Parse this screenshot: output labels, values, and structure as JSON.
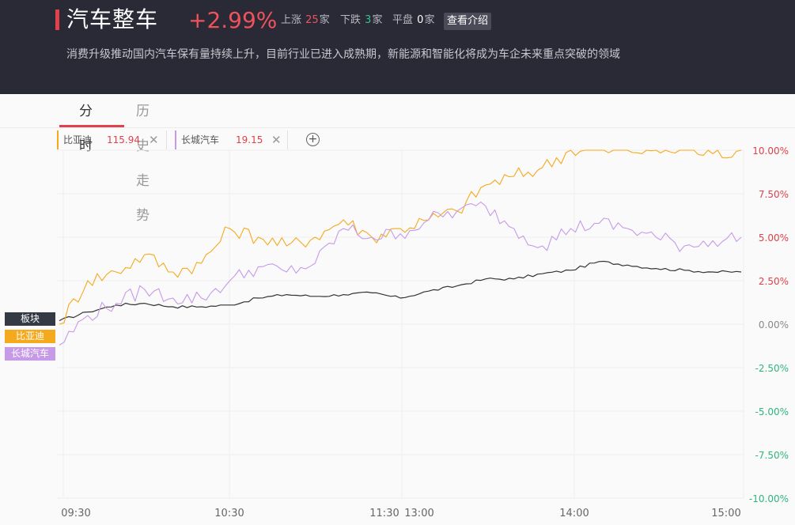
{
  "header": {
    "title": "汽车整车",
    "change": "+2.99%",
    "stats": [
      {
        "label": "上涨",
        "value": "25",
        "unit": "家"
      },
      {
        "label": "下跌",
        "value": "3",
        "unit": "家"
      },
      {
        "label": "平盘",
        "value": "0",
        "unit": "家"
      }
    ],
    "intro_button": "查看介绍",
    "description": "消费升级推动国内汽车保有量持续上升，目前行业已进入成熟期，新能源和智能化将成为车企未来重点突破的领域"
  },
  "tabs": [
    {
      "label": "分时",
      "active": true
    },
    {
      "label": "历史走势",
      "active": false
    }
  ],
  "compare_stocks": [
    {
      "name": "比亚迪",
      "price": "115.94",
      "color": "#f5a91d",
      "close_icon": "close-icon"
    },
    {
      "name": "长城汽车",
      "price": "19.15",
      "color": "#c79ae8",
      "close_icon": "close-icon"
    }
  ],
  "add_icon": "plus-circle-icon",
  "colors": {
    "header_bg": "#2a2a36",
    "up": "#e0414a",
    "down": "#2eb67d",
    "sector_line": "#333333",
    "byd_line": "#f5a91d",
    "gwm_line": "#c79ae8"
  },
  "chart_data": {
    "type": "line",
    "x": [
      "09:30",
      "09:40",
      "09:50",
      "10:00",
      "10:10",
      "10:20",
      "10:30",
      "10:40",
      "10:50",
      "11:00",
      "11:10",
      "11:20",
      "11:30/13:00",
      "13:10",
      "13:20",
      "13:30",
      "13:40",
      "13:50",
      "14:00",
      "14:10",
      "14:20",
      "14:30",
      "14:40",
      "14:50",
      "15:00"
    ],
    "xticks": [
      "09:30",
      "10:30",
      "11:30",
      "13:00",
      "14:00",
      "15:00"
    ],
    "ylim": [
      -10,
      10
    ],
    "yticks": [
      "10.00%",
      "7.50%",
      "5.00%",
      "2.50%",
      "0.00%",
      "-2.50%",
      "-5.00%",
      "-7.50%",
      "-10.00%"
    ],
    "grid": true,
    "series": [
      {
        "name": "板块",
        "color": "#333333",
        "values": [
          0.2,
          0.7,
          1.1,
          1.2,
          1.0,
          1.0,
          1.1,
          1.5,
          1.7,
          1.6,
          1.7,
          1.8,
          1.5,
          1.9,
          2.2,
          2.6,
          2.6,
          2.9,
          3.1,
          3.6,
          3.4,
          3.2,
          3.1,
          3.0,
          3.0
        ]
      },
      {
        "name": "比亚迪",
        "color": "#f5a91d",
        "values": [
          0.0,
          2.5,
          3.0,
          4.0,
          3.0,
          3.5,
          5.5,
          5.0,
          4.5,
          5.0,
          6.0,
          5.0,
          5.5,
          6.0,
          6.5,
          8.0,
          8.5,
          9.0,
          10.0,
          10.0,
          10.0,
          10.0,
          10.0,
          9.8,
          10.0
        ]
      },
      {
        "name": "长城汽车",
        "color": "#c79ae8",
        "values": [
          -1.2,
          0.5,
          1.2,
          2.0,
          1.5,
          1.5,
          2.5,
          3.3,
          3.0,
          3.5,
          5.5,
          5.0,
          5.2,
          6.0,
          6.5,
          6.8,
          5.5,
          4.5,
          5.5,
          5.8,
          5.5,
          5.0,
          4.5,
          4.8,
          5.0
        ]
      }
    ]
  }
}
